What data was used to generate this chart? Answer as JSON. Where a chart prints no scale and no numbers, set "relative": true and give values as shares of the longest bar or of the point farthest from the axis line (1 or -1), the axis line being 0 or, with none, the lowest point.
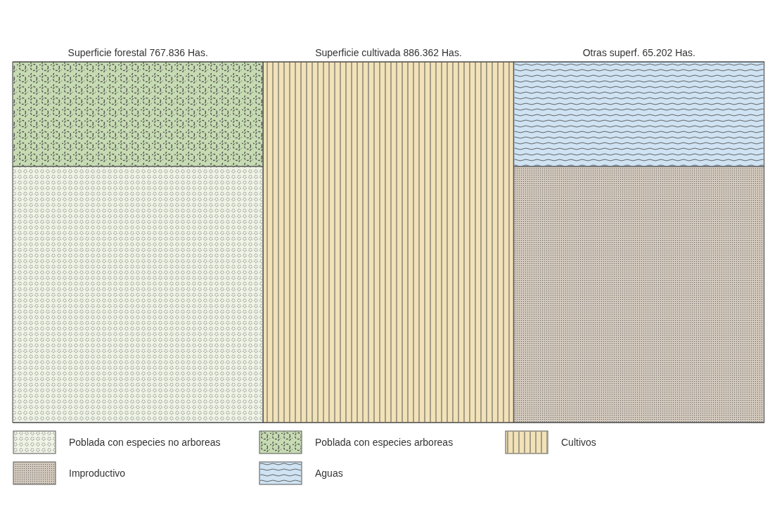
{
  "chart_data": {
    "type": "bar",
    "stacked": true,
    "relative": true,
    "legend": "bottom",
    "categories": [
      "Superficie forestal 767.836 Has.",
      "Superficie cultivada 886.362 Has.",
      "Otras superf. 65.202 Has."
    ],
    "series": [
      {
        "name": "Poblada con especies no arboreas",
        "color": "#eef3e6",
        "values": [
          0.71,
          null,
          null
        ]
      },
      {
        "name": "Poblada con especies arboreas",
        "color": "#c6dbb2",
        "values": [
          0.29,
          null,
          null
        ]
      },
      {
        "name": "Cultivos",
        "color": "#f2e2b8",
        "values": [
          null,
          1,
          null
        ]
      },
      {
        "name": "Improductivo",
        "color": "#d2c8bc",
        "values": [
          null,
          null,
          0.71
        ]
      },
      {
        "name": "Aguas",
        "color": "#cfe3f3",
        "values": [
          null,
          null,
          0.29
        ]
      }
    ]
  }
}
